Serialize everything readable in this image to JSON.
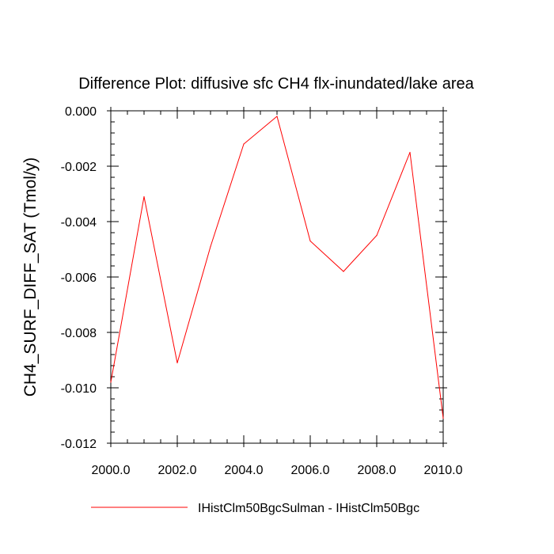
{
  "chart_data": {
    "type": "line",
    "title": "Difference Plot: diffusive sfc CH4 flx-inundated/lake area",
    "xlabel": "",
    "ylabel": "CH4_SURF_DIFF_SAT  (Tmol/y)",
    "xlim": [
      2000,
      2010
    ],
    "ylim": [
      -0.012,
      0.0
    ],
    "x_ticks": [
      "2000.0",
      "2002.0",
      "2004.0",
      "2006.0",
      "2008.0",
      "2010.0"
    ],
    "x_tick_values": [
      2000,
      2002,
      2004,
      2006,
      2008,
      2010
    ],
    "y_ticks": [
      "0.000",
      "-0.002",
      "-0.004",
      "-0.006",
      "-0.008",
      "-0.010",
      "-0.012"
    ],
    "y_tick_values": [
      0.0,
      -0.002,
      -0.004,
      -0.006,
      -0.008,
      -0.01,
      -0.012
    ],
    "grid": false,
    "legend_position": "bottom",
    "series": [
      {
        "name": "IHistClm50BgcSulman - IHistClm50Bgc",
        "color": "#ff0000",
        "x": [
          2000,
          2001,
          2002,
          2003,
          2004,
          2005,
          2006,
          2007,
          2008,
          2009,
          2010
        ],
        "values": [
          -0.0098,
          -0.0031,
          -0.0091,
          -0.0049,
          -0.0012,
          -0.0002,
          -0.0047,
          -0.0058,
          -0.0045,
          -0.0015,
          -0.0111
        ]
      }
    ]
  }
}
